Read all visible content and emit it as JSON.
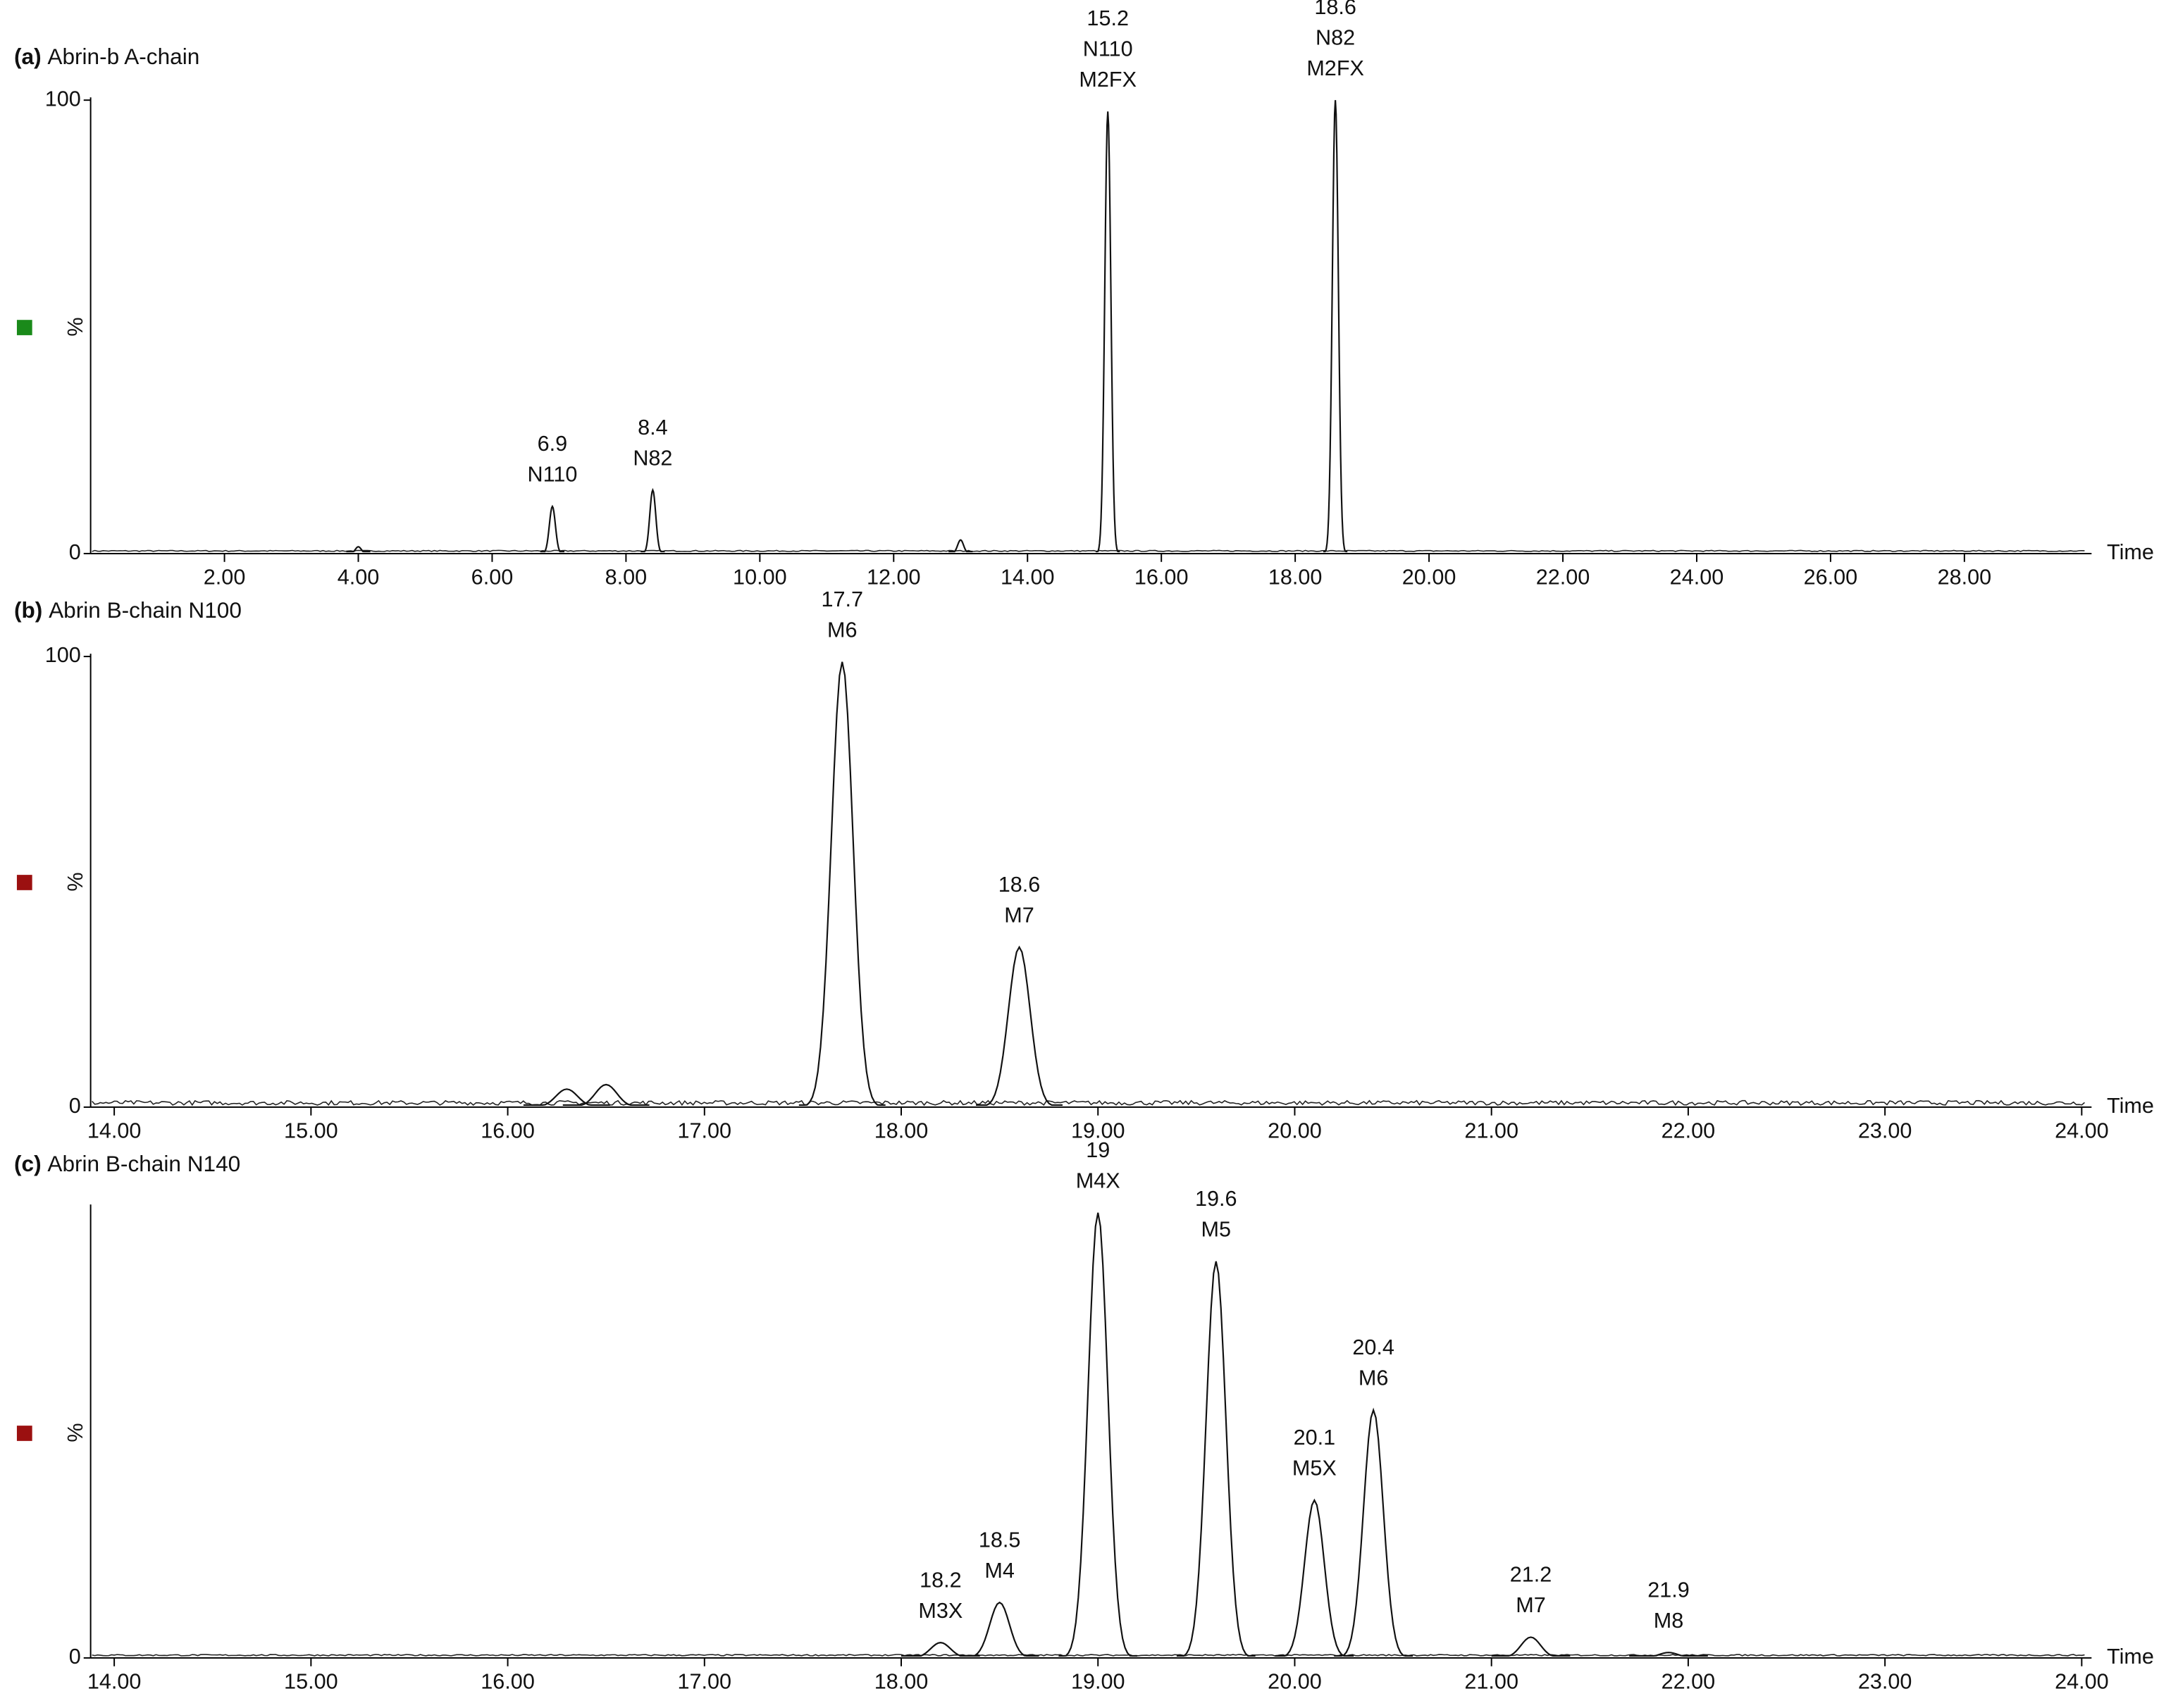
{
  "chart_data": [
    {
      "type": "chromatogram",
      "panel": "(a)",
      "title": "Abrin-b A-chain",
      "marker_color": "#1a8a1a",
      "y_label": "%",
      "x_label": "Time",
      "xlim": [
        0,
        29.9
      ],
      "ylim": [
        0,
        100
      ],
      "yticks": [
        0,
        100
      ],
      "xticks": [
        {
          "value": 2,
          "label": "2.00"
        },
        {
          "value": 4,
          "label": "4.00"
        },
        {
          "value": 6,
          "label": "6.00"
        },
        {
          "value": 8,
          "label": "8.00"
        },
        {
          "value": 10,
          "label": "10.00"
        },
        {
          "value": 12,
          "label": "12.00"
        },
        {
          "value": 14,
          "label": "14.00"
        },
        {
          "value": 16,
          "label": "16.00"
        },
        {
          "value": 18,
          "label": "18.00"
        },
        {
          "value": 20,
          "label": "20.00"
        },
        {
          "value": 22,
          "label": "22.00"
        },
        {
          "value": 24,
          "label": "24.00"
        },
        {
          "value": 26,
          "label": "26.00"
        },
        {
          "value": 28,
          "label": "28.00"
        }
      ],
      "peaks": [
        {
          "x": 4.0,
          "height": 1.5
        },
        {
          "x": 6.9,
          "height": 10.4,
          "labels": [
            "N110"
          ]
        },
        {
          "x": 8.4,
          "height": 14,
          "labels": [
            "N82"
          ]
        },
        {
          "x": 13.0,
          "height": 3
        },
        {
          "x": 15.2,
          "height": 97.5,
          "labels": [
            "N110",
            "M2FX"
          ]
        },
        {
          "x": 18.6,
          "height": 100,
          "labels": [
            "N82",
            "M2FX"
          ]
        }
      ]
    },
    {
      "type": "chromatogram",
      "panel": "(b)",
      "title": "Abrin B-chain N100",
      "marker_color": "#9b1010",
      "y_label": "%",
      "x_label": "Time",
      "xlim": [
        13.88,
        24.05
      ],
      "ylim": [
        0,
        100
      ],
      "yticks": [
        0,
        100
      ],
      "xticks": [
        {
          "value": 14,
          "label": "14.00"
        },
        {
          "value": 15,
          "label": "15.00"
        },
        {
          "value": 16,
          "label": "16.00"
        },
        {
          "value": 17,
          "label": "17.00"
        },
        {
          "value": 18,
          "label": "18.00"
        },
        {
          "value": 19,
          "label": "19.00"
        },
        {
          "value": 20,
          "label": "20.00"
        },
        {
          "value": 21,
          "label": "21.00"
        },
        {
          "value": 22,
          "label": "22.00"
        },
        {
          "value": 23,
          "label": "23.00"
        },
        {
          "value": 24,
          "label": "24.00"
        }
      ],
      "peaks": [
        {
          "x": 16.3,
          "height": 4
        },
        {
          "x": 16.5,
          "height": 5
        },
        {
          "x": 17.7,
          "height": 98.8,
          "labels": [
            "M6"
          ]
        },
        {
          "x": 18.6,
          "height": 35.5,
          "labels": [
            "M7"
          ]
        }
      ]
    },
    {
      "type": "chromatogram",
      "panel": "(c)",
      "title": "Abrin B-chain N140",
      "marker_color": "#9b1010",
      "y_label": "%",
      "x_label": "Time",
      "xlim": [
        13.88,
        24.05
      ],
      "ylim": [
        0,
        100
      ],
      "yticks": [
        0
      ],
      "xticks": [
        {
          "value": 14,
          "label": "14.00"
        },
        {
          "value": 15,
          "label": "15.00"
        },
        {
          "value": 16,
          "label": "16.00"
        },
        {
          "value": 17,
          "label": "17.00"
        },
        {
          "value": 18,
          "label": "18.00"
        },
        {
          "value": 19,
          "label": "19.00"
        },
        {
          "value": 20,
          "label": "20.00"
        },
        {
          "value": 21,
          "label": "21.00"
        },
        {
          "value": 22,
          "label": "22.00"
        },
        {
          "value": 23,
          "label": "23.00"
        },
        {
          "value": 24,
          "label": "24.00"
        }
      ],
      "peaks": [
        {
          "x": 18.2,
          "height": 3.4,
          "labels": [
            "M3X"
          ]
        },
        {
          "x": 18.5,
          "height": 12.3,
          "labels": [
            "M4"
          ]
        },
        {
          "x": 19.0,
          "height": 98.8,
          "labels": [
            "M4X"
          ]
        },
        {
          "x": 19.6,
          "height": 88,
          "labels": [
            "M5"
          ]
        },
        {
          "x": 20.1,
          "height": 35,
          "labels": [
            "M5X"
          ]
        },
        {
          "x": 20.4,
          "height": 55,
          "labels": [
            "M6"
          ]
        },
        {
          "x": 21.2,
          "height": 4.6,
          "labels": [
            "M7"
          ]
        },
        {
          "x": 21.9,
          "height": 1.2,
          "labels": [
            "M8"
          ]
        }
      ]
    }
  ]
}
